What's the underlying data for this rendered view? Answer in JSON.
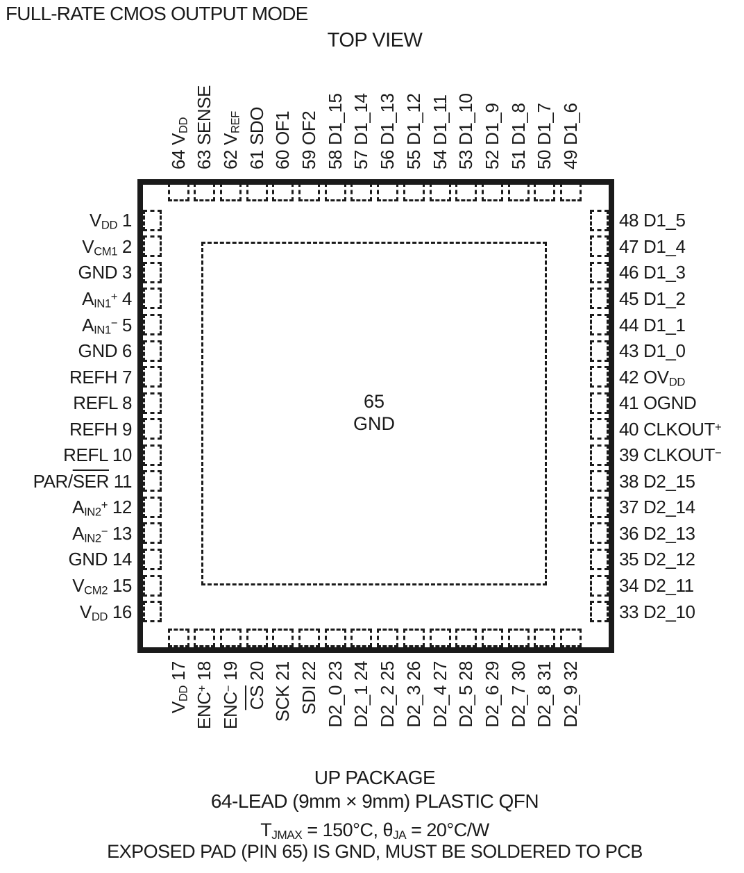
{
  "page": {
    "title": "FULL-RATE CMOS OUTPUT MODE",
    "view_label": "TOP VIEW"
  },
  "colors": {
    "ink": "#1a1a1a",
    "background": "#ffffff"
  },
  "package": {
    "center_pad": {
      "number": "65",
      "name": "GND"
    },
    "pins": {
      "top": [
        {
          "num": "64",
          "name": "V~DD~"
        },
        {
          "num": "63",
          "name": "SENSE"
        },
        {
          "num": "62",
          "name": "V~REF~"
        },
        {
          "num": "61",
          "name": "SDO"
        },
        {
          "num": "60",
          "name": "OF1"
        },
        {
          "num": "59",
          "name": "OF2"
        },
        {
          "num": "58",
          "name": "D1_15"
        },
        {
          "num": "57",
          "name": "D1_14"
        },
        {
          "num": "56",
          "name": "D1_13"
        },
        {
          "num": "55",
          "name": "D1_12"
        },
        {
          "num": "54",
          "name": "D1_11"
        },
        {
          "num": "53",
          "name": "D1_10"
        },
        {
          "num": "52",
          "name": "D1_9"
        },
        {
          "num": "51",
          "name": "D1_8"
        },
        {
          "num": "50",
          "name": "D1_7"
        },
        {
          "num": "49",
          "name": "D1_6"
        }
      ],
      "left": [
        {
          "num": "1",
          "name": "V~DD~"
        },
        {
          "num": "2",
          "name": "V~CM1~"
        },
        {
          "num": "3",
          "name": "GND"
        },
        {
          "num": "4",
          "name": "A~IN1~^+^"
        },
        {
          "num": "5",
          "name": "A~IN1~^−^"
        },
        {
          "num": "6",
          "name": "GND"
        },
        {
          "num": "7",
          "name": "REFH"
        },
        {
          "num": "8",
          "name": "REFL"
        },
        {
          "num": "9",
          "name": "REFH"
        },
        {
          "num": "10",
          "name": "REFL"
        },
        {
          "num": "11",
          "name": "PAR/|SER|"
        },
        {
          "num": "12",
          "name": "A~IN2~^+^"
        },
        {
          "num": "13",
          "name": "A~IN2~^−^"
        },
        {
          "num": "14",
          "name": "GND"
        },
        {
          "num": "15",
          "name": "V~CM2~"
        },
        {
          "num": "16",
          "name": "V~DD~"
        }
      ],
      "right": [
        {
          "num": "48",
          "name": "D1_5"
        },
        {
          "num": "47",
          "name": "D1_4"
        },
        {
          "num": "46",
          "name": "D1_3"
        },
        {
          "num": "45",
          "name": "D1_2"
        },
        {
          "num": "44",
          "name": "D1_1"
        },
        {
          "num": "43",
          "name": "D1_0"
        },
        {
          "num": "42",
          "name": "OV~DD~"
        },
        {
          "num": "41",
          "name": "OGND"
        },
        {
          "num": "40",
          "name": "CLKOUT^+^"
        },
        {
          "num": "39",
          "name": "CLKOUT^−^"
        },
        {
          "num": "38",
          "name": "D2_15"
        },
        {
          "num": "37",
          "name": "D2_14"
        },
        {
          "num": "36",
          "name": "D2_13"
        },
        {
          "num": "35",
          "name": "D2_12"
        },
        {
          "num": "34",
          "name": "D2_11"
        },
        {
          "num": "33",
          "name": "D2_10"
        }
      ],
      "bottom": [
        {
          "num": "17",
          "name": "V~DD~"
        },
        {
          "num": "18",
          "name": "ENC^+^"
        },
        {
          "num": "19",
          "name": "ENC^−^"
        },
        {
          "num": "20",
          "name": "|CS|"
        },
        {
          "num": "21",
          "name": "SCK"
        },
        {
          "num": "22",
          "name": "SDI"
        },
        {
          "num": "23",
          "name": "D2_0"
        },
        {
          "num": "24",
          "name": "D2_1"
        },
        {
          "num": "25",
          "name": "D2_2"
        },
        {
          "num": "26",
          "name": "D2_3"
        },
        {
          "num": "27",
          "name": "D2_4"
        },
        {
          "num": "28",
          "name": "D2_5"
        },
        {
          "num": "29",
          "name": "D2_6"
        },
        {
          "num": "30",
          "name": "D2_7"
        },
        {
          "num": "31",
          "name": "D2_8"
        },
        {
          "num": "32",
          "name": "D2_9"
        }
      ]
    }
  },
  "footer": {
    "line1": "UP PACKAGE",
    "line2": "64-LEAD (9mm × 9mm) PLASTIC QFN",
    "line3": "T~JMAX~ = 150°C, θ~JA~ = 20°C/W",
    "line4": "EXPOSED PAD (PIN 65) IS GND, MUST BE SOLDERED TO PCB"
  }
}
